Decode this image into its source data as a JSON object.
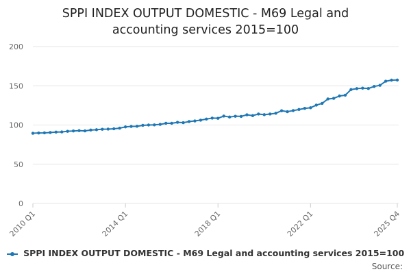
{
  "title_lines": [
    "SPPI INDEX OUTPUT DOMESTIC - M69 Legal and",
    "accounting services 2015=100"
  ],
  "source_label": "Source:",
  "colors": {
    "series": "#1f77b4",
    "grid": "#e6e6e6",
    "axis_text": "#666666"
  },
  "chart_data": {
    "type": "line",
    "title": "SPPI INDEX OUTPUT DOMESTIC - M69 Legal and accounting services 2015=100",
    "xlabel": "",
    "ylabel": "",
    "ylim": [
      0,
      200
    ],
    "y_ticks": [
      0,
      50,
      100,
      150,
      200
    ],
    "x_tick_labels": [
      {
        "label": "2010 Q1",
        "index": 0
      },
      {
        "label": "2014 Q1",
        "index": 16
      },
      {
        "label": "2018 Q1",
        "index": 32
      },
      {
        "label": "2022 Q1",
        "index": 48
      },
      {
        "label": "2025 Q4",
        "index": 63
      }
    ],
    "grid": true,
    "legend": "bottom",
    "series": [
      {
        "name": "SPPI INDEX OUTPUT DOMESTIC - M69 Legal and accounting services 2015=100",
        "x": [
          "2010 Q1",
          "2010 Q2",
          "2010 Q3",
          "2010 Q4",
          "2011 Q1",
          "2011 Q2",
          "2011 Q3",
          "2011 Q4",
          "2012 Q1",
          "2012 Q2",
          "2012 Q3",
          "2012 Q4",
          "2013 Q1",
          "2013 Q2",
          "2013 Q3",
          "2013 Q4",
          "2014 Q1",
          "2014 Q2",
          "2014 Q3",
          "2014 Q4",
          "2015 Q1",
          "2015 Q2",
          "2015 Q3",
          "2015 Q4",
          "2016 Q1",
          "2016 Q2",
          "2016 Q3",
          "2016 Q4",
          "2017 Q1",
          "2017 Q2",
          "2017 Q3",
          "2017 Q4",
          "2018 Q1",
          "2018 Q2",
          "2018 Q3",
          "2018 Q4",
          "2019 Q1",
          "2019 Q2",
          "2019 Q3",
          "2019 Q4",
          "2020 Q1",
          "2020 Q2",
          "2020 Q3",
          "2020 Q4",
          "2021 Q1",
          "2021 Q2",
          "2021 Q3",
          "2021 Q4",
          "2022 Q1",
          "2022 Q2",
          "2022 Q3",
          "2022 Q4",
          "2023 Q1",
          "2023 Q2",
          "2023 Q3",
          "2023 Q4",
          "2024 Q1",
          "2024 Q2",
          "2024 Q3",
          "2024 Q4",
          "2025 Q1",
          "2025 Q2",
          "2025 Q3",
          "2025 Q4"
        ],
        "values": [
          89.5,
          89.8,
          90.0,
          90.4,
          91.0,
          91.2,
          92.0,
          92.4,
          92.8,
          92.5,
          93.6,
          94.0,
          94.6,
          94.8,
          95.2,
          96.0,
          97.6,
          98.2,
          98.4,
          99.6,
          100.0,
          100.2,
          100.8,
          102.2,
          102.2,
          103.4,
          103.0,
          104.4,
          105.2,
          106.2,
          107.6,
          108.8,
          108.6,
          111.4,
          110.2,
          111.2,
          111.0,
          113.0,
          112.0,
          114.0,
          113.2,
          114.0,
          115.0,
          118.2,
          117.0,
          118.4,
          119.8,
          121.2,
          122.0,
          125.4,
          127.6,
          133.2,
          134.0,
          137.0,
          138.0,
          145.2,
          146.4,
          147.0,
          146.6,
          149.2,
          150.6,
          155.8,
          157.2,
          157.4
        ]
      }
    ]
  }
}
